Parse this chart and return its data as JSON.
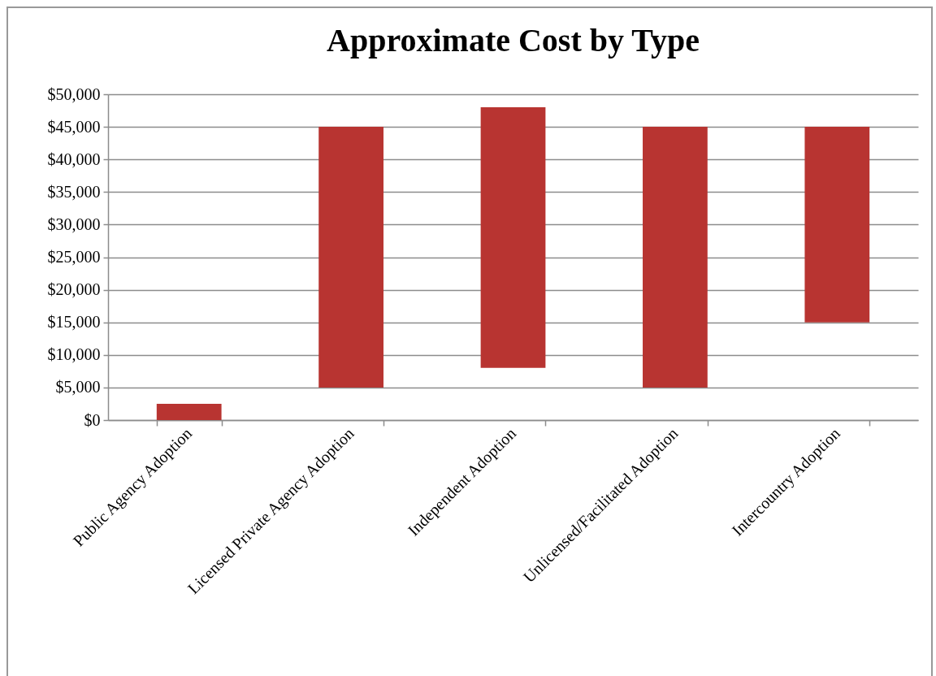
{
  "chart_data": {
    "type": "bar",
    "title": "Approximate Cost by Type",
    "categories": [
      "Public Agency Adoption",
      "Licensed Private Agency Adoption",
      "Independent Adoption",
      "Unlicensed/Facilitated Adoption",
      "Intercountry Adoption"
    ],
    "values": [
      2500,
      40000,
      40000,
      40000,
      30000
    ],
    "base": [
      0,
      5000,
      8000,
      5000,
      15000
    ],
    "color": "#b83431",
    "ylim": [
      0,
      50000
    ],
    "yticks": [
      {
        "value": 0,
        "label": "$0"
      },
      {
        "value": 5000,
        "label": "$5,000"
      },
      {
        "value": 10000,
        "label": "$10,000"
      },
      {
        "value": 15000,
        "label": "$15,000"
      },
      {
        "value": 20000,
        "label": "$20,000"
      },
      {
        "value": 25000,
        "label": "$25,000"
      },
      {
        "value": 30000,
        "label": "$30,000"
      },
      {
        "value": 35000,
        "label": "$35,000"
      },
      {
        "value": 40000,
        "label": "$40,000"
      },
      {
        "value": 45000,
        "label": "$45,000"
      },
      {
        "value": 50000,
        "label": "$50,000"
      }
    ],
    "grid": "y"
  }
}
